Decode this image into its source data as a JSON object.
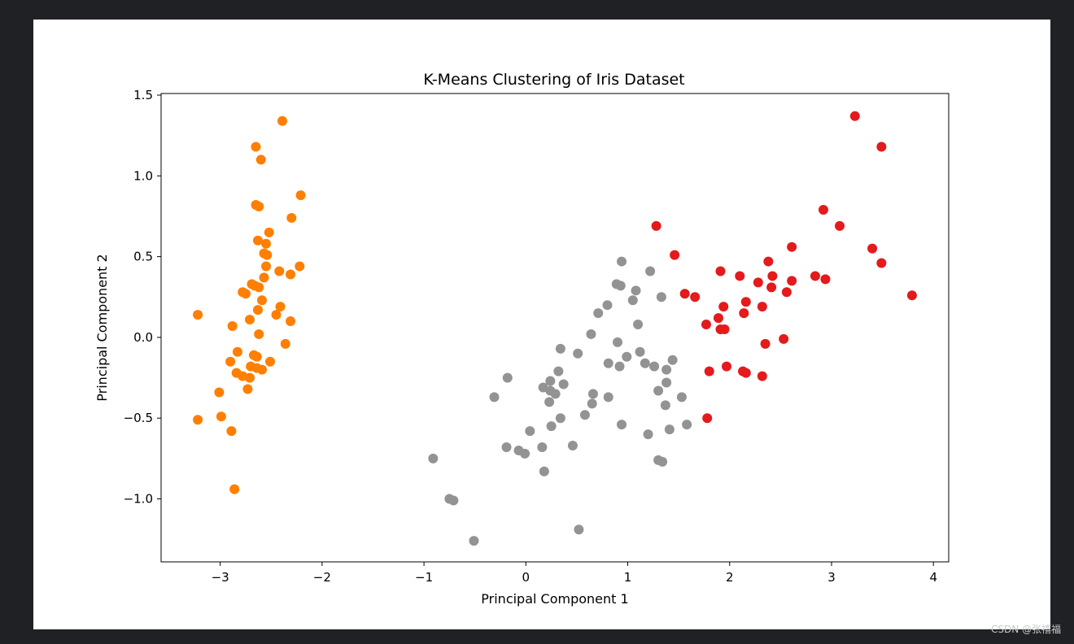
{
  "watermark": "CSDN @张禧福",
  "chart_data": {
    "type": "scatter",
    "title": "K-Means Clustering of Iris Dataset",
    "xlabel": "Principal Component 1",
    "ylabel": "Principal Component 2",
    "xlim": [
      -3.58,
      4.15
    ],
    "ylim": [
      -1.39,
      1.51
    ],
    "xticks": [
      {
        "value": -3,
        "label": "−3"
      },
      {
        "value": -2,
        "label": "−2"
      },
      {
        "value": -1,
        "label": "−1"
      },
      {
        "value": 0,
        "label": "0"
      },
      {
        "value": 1,
        "label": "1"
      },
      {
        "value": 2,
        "label": "2"
      },
      {
        "value": 3,
        "label": "3"
      },
      {
        "value": 4,
        "label": "4"
      }
    ],
    "yticks": [
      {
        "value": -1.0,
        "label": "−1.0"
      },
      {
        "value": -0.5,
        "label": "−0.5"
      },
      {
        "value": 0.0,
        "label": "0.0"
      },
      {
        "value": 0.5,
        "label": "0.5"
      },
      {
        "value": 1.0,
        "label": "1.0"
      },
      {
        "value": 1.5,
        "label": "1.5"
      }
    ],
    "grid": false,
    "legend": false,
    "series": [
      {
        "color": "#ff7f00",
        "points": [
          [
            -2.39,
            1.34
          ],
          [
            -2.65,
            1.18
          ],
          [
            -2.6,
            1.1
          ],
          [
            -2.65,
            0.82
          ],
          [
            -2.62,
            0.81
          ],
          [
            -2.21,
            0.88
          ],
          [
            -2.3,
            0.74
          ],
          [
            -2.52,
            0.65
          ],
          [
            -2.63,
            0.6
          ],
          [
            -2.55,
            0.58
          ],
          [
            -2.57,
            0.52
          ],
          [
            -2.54,
            0.51
          ],
          [
            -2.55,
            0.44
          ],
          [
            -2.22,
            0.44
          ],
          [
            -2.42,
            0.41
          ],
          [
            -2.31,
            0.39
          ],
          [
            -2.57,
            0.37
          ],
          [
            -2.69,
            0.33
          ],
          [
            -2.66,
            0.32
          ],
          [
            -2.62,
            0.31
          ],
          [
            -2.78,
            0.28
          ],
          [
            -2.75,
            0.27
          ],
          [
            -2.59,
            0.23
          ],
          [
            -2.41,
            0.19
          ],
          [
            -2.63,
            0.17
          ],
          [
            -2.45,
            0.14
          ],
          [
            -3.22,
            0.14
          ],
          [
            -2.71,
            0.11
          ],
          [
            -2.31,
            0.1
          ],
          [
            -2.88,
            0.07
          ],
          [
            -2.62,
            0.02
          ],
          [
            -2.36,
            -0.04
          ],
          [
            -2.83,
            -0.09
          ],
          [
            -2.67,
            -0.11
          ],
          [
            -2.64,
            -0.12
          ],
          [
            -2.51,
            -0.15
          ],
          [
            -2.9,
            -0.15
          ],
          [
            -2.7,
            -0.18
          ],
          [
            -2.64,
            -0.19
          ],
          [
            -2.59,
            -0.2
          ],
          [
            -2.84,
            -0.22
          ],
          [
            -2.78,
            -0.24
          ],
          [
            -2.71,
            -0.25
          ],
          [
            -2.73,
            -0.32
          ],
          [
            -3.01,
            -0.34
          ],
          [
            -2.99,
            -0.49
          ],
          [
            -3.22,
            -0.51
          ],
          [
            -2.89,
            -0.58
          ],
          [
            -2.86,
            -0.94
          ]
        ]
      },
      {
        "color": "#939393",
        "points": [
          [
            0.94,
            0.47
          ],
          [
            1.22,
            0.41
          ],
          [
            0.89,
            0.33
          ],
          [
            0.93,
            0.32
          ],
          [
            1.08,
            0.29
          ],
          [
            1.33,
            0.25
          ],
          [
            1.05,
            0.23
          ],
          [
            0.8,
            0.2
          ],
          [
            0.71,
            0.15
          ],
          [
            1.1,
            0.08
          ],
          [
            0.64,
            0.02
          ],
          [
            0.9,
            -0.03
          ],
          [
            0.34,
            -0.07
          ],
          [
            1.12,
            -0.09
          ],
          [
            0.51,
            -0.1
          ],
          [
            0.99,
            -0.12
          ],
          [
            1.44,
            -0.14
          ],
          [
            0.81,
            -0.16
          ],
          [
            1.17,
            -0.16
          ],
          [
            0.92,
            -0.18
          ],
          [
            1.26,
            -0.18
          ],
          [
            1.38,
            -0.2
          ],
          [
            0.32,
            -0.21
          ],
          [
            -0.18,
            -0.25
          ],
          [
            0.24,
            -0.27
          ],
          [
            0.37,
            -0.29
          ],
          [
            1.38,
            -0.28
          ],
          [
            0.17,
            -0.31
          ],
          [
            1.3,
            -0.33
          ],
          [
            0.24,
            -0.33
          ],
          [
            0.29,
            -0.35
          ],
          [
            0.66,
            -0.35
          ],
          [
            -0.31,
            -0.37
          ],
          [
            0.81,
            -0.37
          ],
          [
            1.53,
            -0.37
          ],
          [
            0.23,
            -0.4
          ],
          [
            0.65,
            -0.41
          ],
          [
            1.37,
            -0.42
          ],
          [
            0.58,
            -0.48
          ],
          [
            0.34,
            -0.5
          ],
          [
            1.58,
            -0.54
          ],
          [
            0.25,
            -0.55
          ],
          [
            0.94,
            -0.54
          ],
          [
            1.41,
            -0.57
          ],
          [
            0.04,
            -0.58
          ],
          [
            1.2,
            -0.6
          ],
          [
            0.46,
            -0.67
          ],
          [
            -0.19,
            -0.68
          ],
          [
            0.16,
            -0.68
          ],
          [
            -0.07,
            -0.7
          ],
          [
            -0.01,
            -0.72
          ],
          [
            -0.91,
            -0.75
          ],
          [
            1.3,
            -0.76
          ],
          [
            1.34,
            -0.77
          ],
          [
            0.18,
            -0.83
          ],
          [
            -0.75,
            -1.0
          ],
          [
            -0.71,
            -1.01
          ],
          [
            0.52,
            -1.19
          ],
          [
            -0.51,
            -1.26
          ]
        ]
      },
      {
        "color": "#e41a1c",
        "points": [
          [
            3.23,
            1.37
          ],
          [
            3.49,
            1.18
          ],
          [
            2.92,
            0.79
          ],
          [
            1.28,
            0.69
          ],
          [
            3.08,
            0.69
          ],
          [
            2.61,
            0.56
          ],
          [
            3.4,
            0.55
          ],
          [
            1.46,
            0.51
          ],
          [
            2.38,
            0.47
          ],
          [
            3.49,
            0.46
          ],
          [
            1.91,
            0.41
          ],
          [
            2.1,
            0.38
          ],
          [
            2.42,
            0.38
          ],
          [
            2.84,
            0.38
          ],
          [
            2.94,
            0.36
          ],
          [
            2.28,
            0.34
          ],
          [
            2.61,
            0.35
          ],
          [
            2.41,
            0.31
          ],
          [
            2.56,
            0.28
          ],
          [
            1.56,
            0.27
          ],
          [
            1.66,
            0.25
          ],
          [
            3.79,
            0.26
          ],
          [
            2.16,
            0.22
          ],
          [
            1.94,
            0.19
          ],
          [
            2.32,
            0.19
          ],
          [
            2.14,
            0.15
          ],
          [
            1.89,
            0.12
          ],
          [
            1.77,
            0.08
          ],
          [
            1.91,
            0.05
          ],
          [
            1.95,
            0.05
          ],
          [
            2.53,
            -0.01
          ],
          [
            2.35,
            -0.04
          ],
          [
            1.97,
            -0.18
          ],
          [
            2.13,
            -0.21
          ],
          [
            2.16,
            -0.22
          ],
          [
            1.8,
            -0.21
          ],
          [
            2.32,
            -0.24
          ],
          [
            1.78,
            -0.5
          ]
        ]
      }
    ]
  }
}
